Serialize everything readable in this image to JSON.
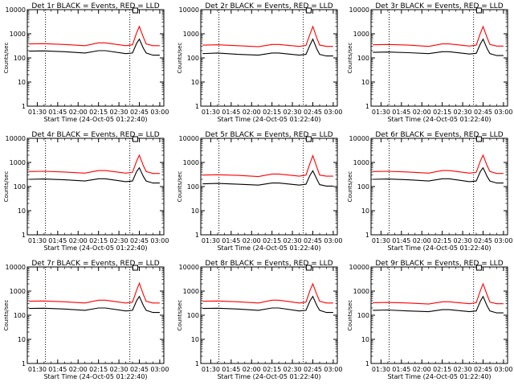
{
  "colors": {
    "events": "#000000",
    "lld": "#ff0000",
    "axes": "#000000",
    "background": "#ffffff"
  },
  "chart_data": [
    {
      "type": "line",
      "title": "Det 1r BLACK = Events, RED = LLD",
      "xlabel": "Start Time (24-Oct-05 01:22:40)",
      "ylabel": "Counts/sec",
      "y_scale": "log",
      "ylim": [
        1,
        10000
      ],
      "y_ticks": [
        "1",
        "10",
        "100",
        "1000",
        "10000"
      ],
      "x_ticks": [
        "01:30",
        "01:45",
        "02:00",
        "02:15",
        "02:30",
        "02:45",
        "03:00"
      ],
      "x_range": [
        "01:22:40",
        "03:03:00"
      ],
      "vlines": [
        "01:36",
        "02:38"
      ],
      "marker_x": "02:42",
      "series": [
        {
          "role": "events",
          "x": [
            "01:24",
            "01:35",
            "01:50",
            "02:05",
            "02:15",
            "02:20",
            "02:35",
            "02:40",
            "02:43",
            "02:45",
            "02:48",
            "02:50",
            "02:55",
            "03:00"
          ],
          "y": [
            190,
            195,
            180,
            160,
            200,
            200,
            150,
            160,
            400,
            600,
            250,
            160,
            130,
            130
          ]
        },
        {
          "role": "lld",
          "x": [
            "01:24",
            "01:35",
            "01:50",
            "02:05",
            "02:15",
            "02:20",
            "02:35",
            "02:40",
            "02:43",
            "02:45",
            "02:48",
            "02:50",
            "02:55",
            "03:00"
          ],
          "y": [
            380,
            390,
            360,
            320,
            420,
            420,
            320,
            350,
            1100,
            2000,
            700,
            380,
            320,
            320
          ]
        }
      ]
    },
    {
      "type": "line",
      "title": "Det 2r BLACK = Events, RED = LLD",
      "xlabel": "Start Time (24-Oct-05 01:22:40)",
      "ylabel": "Counts/sec",
      "y_scale": "log",
      "ylim": [
        1,
        10000
      ],
      "y_ticks": [
        "1",
        "10",
        "100",
        "1000",
        "10000"
      ],
      "x_ticks": [
        "01:30",
        "01:45",
        "02:00",
        "02:15",
        "02:30",
        "02:45",
        "03:00"
      ],
      "x_range": [
        "01:22:40",
        "03:03:00"
      ],
      "vlines": [
        "01:36",
        "02:38"
      ],
      "marker_x": "02:42",
      "series": [
        {
          "role": "events",
          "x": [
            "01:24",
            "01:35",
            "01:50",
            "02:05",
            "02:15",
            "02:20",
            "02:35",
            "02:40",
            "02:43",
            "02:45",
            "02:48",
            "02:50",
            "02:55",
            "03:00"
          ],
          "y": [
            150,
            160,
            140,
            130,
            160,
            160,
            130,
            140,
            350,
            600,
            230,
            140,
            120,
            120
          ]
        },
        {
          "role": "lld",
          "x": [
            "01:24",
            "01:35",
            "01:50",
            "02:05",
            "02:15",
            "02:20",
            "02:35",
            "02:40",
            "02:43",
            "02:45",
            "02:48",
            "02:50",
            "02:55",
            "03:00"
          ],
          "y": [
            340,
            350,
            320,
            290,
            360,
            360,
            300,
            330,
            1000,
            2000,
            650,
            340,
            300,
            300
          ]
        }
      ]
    },
    {
      "type": "line",
      "title": "Det 3r BLACK = Events, RED = LLD",
      "xlabel": "Start Time (24-Oct-05 01:22:40)",
      "ylabel": "Counts/sec",
      "y_scale": "log",
      "ylim": [
        1,
        10000
      ],
      "y_ticks": [
        "1",
        "10",
        "100",
        "1000",
        "10000"
      ],
      "x_ticks": [
        "01:30",
        "01:45",
        "02:00",
        "02:15",
        "02:30",
        "02:45",
        "03:00"
      ],
      "x_range": [
        "01:22:40",
        "03:03:00"
      ],
      "vlines": [
        "01:36",
        "02:38"
      ],
      "marker_x": "02:42",
      "series": [
        {
          "role": "events",
          "x": [
            "01:24",
            "01:35",
            "01:50",
            "02:05",
            "02:15",
            "02:20",
            "02:35",
            "02:40",
            "02:43",
            "02:45",
            "02:48",
            "02:50",
            "02:55",
            "03:00"
          ],
          "y": [
            170,
            175,
            165,
            150,
            180,
            180,
            145,
            155,
            380,
            600,
            240,
            150,
            125,
            125
          ]
        },
        {
          "role": "lld",
          "x": [
            "01:24",
            "01:35",
            "01:50",
            "02:05",
            "02:15",
            "02:20",
            "02:35",
            "02:40",
            "02:43",
            "02:45",
            "02:48",
            "02:50",
            "02:55",
            "03:00"
          ],
          "y": [
            350,
            360,
            340,
            300,
            380,
            380,
            310,
            340,
            1050,
            2000,
            680,
            360,
            310,
            310
          ]
        }
      ]
    },
    {
      "type": "line",
      "title": "Det 4r BLACK = Events, RED = LLD",
      "xlabel": "Start Time (24-Oct-05 01:22:40)",
      "ylabel": "Counts/sec",
      "y_scale": "log",
      "ylim": [
        1,
        10000
      ],
      "y_ticks": [
        "1",
        "10",
        "100",
        "1000",
        "10000"
      ],
      "x_ticks": [
        "01:30",
        "01:45",
        "02:00",
        "02:15",
        "02:30",
        "02:45",
        "03:00"
      ],
      "x_range": [
        "01:22:40",
        "03:03:00"
      ],
      "vlines": [
        "01:36",
        "02:38"
      ],
      "marker_x": "02:42",
      "series": [
        {
          "role": "events",
          "x": [
            "01:24",
            "01:35",
            "01:50",
            "02:05",
            "02:15",
            "02:20",
            "02:35",
            "02:40",
            "02:43",
            "02:45",
            "02:48",
            "02:50",
            "02:55",
            "03:00"
          ],
          "y": [
            200,
            205,
            190,
            170,
            210,
            210,
            160,
            170,
            420,
            600,
            260,
            170,
            140,
            140
          ]
        },
        {
          "role": "lld",
          "x": [
            "01:24",
            "01:35",
            "01:50",
            "02:05",
            "02:15",
            "02:20",
            "02:35",
            "02:40",
            "02:43",
            "02:45",
            "02:48",
            "02:50",
            "02:55",
            "03:00"
          ],
          "y": [
            420,
            430,
            400,
            360,
            460,
            460,
            360,
            390,
            1150,
            2000,
            720,
            420,
            350,
            350
          ]
        }
      ]
    },
    {
      "type": "line",
      "title": "Det 5r BLACK = Events, RED = LLD",
      "xlabel": "Start Time (24-Oct-05 01:22:40)",
      "ylabel": "Counts/sec",
      "y_scale": "log",
      "ylim": [
        1,
        10000
      ],
      "y_ticks": [
        "1",
        "10",
        "100",
        "1000",
        "10000"
      ],
      "x_ticks": [
        "01:30",
        "01:45",
        "02:00",
        "02:15",
        "02:30",
        "02:45",
        "03:00"
      ],
      "x_range": [
        "01:22:40",
        "03:03:00"
      ],
      "vlines": [
        "01:36",
        "02:38"
      ],
      "marker_x": "02:42",
      "series": [
        {
          "role": "events",
          "x": [
            "01:24",
            "01:35",
            "01:50",
            "02:05",
            "02:15",
            "02:20",
            "02:35",
            "02:40",
            "02:43",
            "02:45",
            "02:48",
            "02:50",
            "02:55",
            "03:00"
          ],
          "y": [
            130,
            135,
            125,
            115,
            140,
            140,
            115,
            125,
            300,
            450,
            200,
            120,
            105,
            105
          ]
        },
        {
          "role": "lld",
          "x": [
            "01:24",
            "01:35",
            "01:50",
            "02:05",
            "02:15",
            "02:20",
            "02:35",
            "02:40",
            "02:43",
            "02:45",
            "02:48",
            "02:50",
            "02:55",
            "03:00"
          ],
          "y": [
            300,
            310,
            290,
            260,
            330,
            330,
            270,
            300,
            950,
            1900,
            620,
            300,
            270,
            270
          ]
        }
      ]
    },
    {
      "type": "line",
      "title": "Det 6r BLACK = Events, RED = LLD",
      "xlabel": "Start Time (24-Oct-05 01:22:40)",
      "ylabel": "Counts/sec",
      "y_scale": "log",
      "ylim": [
        1,
        10000
      ],
      "y_ticks": [
        "1",
        "10",
        "100",
        "1000",
        "10000"
      ],
      "x_ticks": [
        "01:30",
        "01:45",
        "02:00",
        "02:15",
        "02:30",
        "02:45",
        "03:00"
      ],
      "x_range": [
        "01:22:40",
        "03:03:00"
      ],
      "vlines": [
        "01:36",
        "02:38"
      ],
      "marker_x": "02:42",
      "series": [
        {
          "role": "events",
          "x": [
            "01:24",
            "01:35",
            "01:50",
            "02:05",
            "02:15",
            "02:20",
            "02:35",
            "02:40",
            "02:43",
            "02:45",
            "02:48",
            "02:50",
            "02:55",
            "03:00"
          ],
          "y": [
            200,
            205,
            190,
            170,
            210,
            210,
            160,
            170,
            420,
            600,
            260,
            170,
            140,
            140
          ]
        },
        {
          "role": "lld",
          "x": [
            "01:24",
            "01:35",
            "01:50",
            "02:05",
            "02:15",
            "02:20",
            "02:35",
            "02:40",
            "02:43",
            "02:45",
            "02:48",
            "02:50",
            "02:55",
            "03:00"
          ],
          "y": [
            420,
            430,
            400,
            360,
            460,
            460,
            360,
            390,
            1150,
            2000,
            720,
            420,
            350,
            350
          ]
        }
      ]
    },
    {
      "type": "line",
      "title": "Det 7r BLACK = Events, RED = LLD",
      "xlabel": "Start Time (24-Oct-05 01:22:40)",
      "ylabel": "Counts/sec",
      "y_scale": "log",
      "ylim": [
        1,
        10000
      ],
      "y_ticks": [
        "1",
        "10",
        "100",
        "1000",
        "10000"
      ],
      "x_ticks": [
        "01:30",
        "01:45",
        "02:00",
        "02:15",
        "02:30",
        "02:45",
        "03:00"
      ],
      "x_range": [
        "01:22:40",
        "03:03:00"
      ],
      "vlines": [
        "01:36",
        "02:38"
      ],
      "marker_x": "02:42",
      "series": [
        {
          "role": "events",
          "x": [
            "01:24",
            "01:35",
            "01:50",
            "02:05",
            "02:15",
            "02:20",
            "02:35",
            "02:40",
            "02:43",
            "02:45",
            "02:48",
            "02:50",
            "02:55",
            "03:00"
          ],
          "y": [
            190,
            195,
            180,
            160,
            200,
            200,
            150,
            160,
            400,
            600,
            250,
            160,
            130,
            130
          ]
        },
        {
          "role": "lld",
          "x": [
            "01:24",
            "01:35",
            "01:50",
            "02:05",
            "02:15",
            "02:20",
            "02:35",
            "02:40",
            "02:43",
            "02:45",
            "02:48",
            "02:50",
            "02:55",
            "03:00"
          ],
          "y": [
            380,
            390,
            360,
            320,
            420,
            420,
            320,
            350,
            1100,
            2100,
            700,
            380,
            320,
            320
          ]
        }
      ]
    },
    {
      "type": "line",
      "title": "Det 8r BLACK = Events, RED = LLD",
      "xlabel": "Start Time (24-Oct-05 01:22:40)",
      "ylabel": "Counts/sec",
      "y_scale": "log",
      "ylim": [
        1,
        10000
      ],
      "y_ticks": [
        "1",
        "10",
        "100",
        "1000",
        "10000"
      ],
      "x_ticks": [
        "01:30",
        "01:45",
        "02:00",
        "02:15",
        "02:30",
        "02:45",
        "03:00"
      ],
      "x_range": [
        "01:22:40",
        "03:03:00"
      ],
      "vlines": [
        "01:36",
        "02:38"
      ],
      "marker_x": "02:42",
      "series": [
        {
          "role": "events",
          "x": [
            "01:24",
            "01:35",
            "01:50",
            "02:05",
            "02:15",
            "02:20",
            "02:35",
            "02:40",
            "02:43",
            "02:45",
            "02:48",
            "02:50",
            "02:55",
            "03:00"
          ],
          "y": [
            190,
            195,
            180,
            160,
            200,
            200,
            150,
            160,
            400,
            600,
            250,
            160,
            130,
            130
          ]
        },
        {
          "role": "lld",
          "x": [
            "01:24",
            "01:35",
            "01:50",
            "02:05",
            "02:15",
            "02:20",
            "02:35",
            "02:40",
            "02:43",
            "02:45",
            "02:48",
            "02:50",
            "02:55",
            "03:00"
          ],
          "y": [
            380,
            390,
            360,
            320,
            420,
            420,
            320,
            350,
            1100,
            2000,
            700,
            380,
            320,
            320
          ]
        }
      ]
    },
    {
      "type": "line",
      "title": "Det 9r BLACK = Events, RED = LLD",
      "xlabel": "Start Time (24-Oct-05 01:22:40)",
      "ylabel": "Counts/sec",
      "y_scale": "log",
      "ylim": [
        1,
        10000
      ],
      "y_ticks": [
        "1",
        "10",
        "100",
        "1000",
        "10000"
      ],
      "x_ticks": [
        "01:30",
        "01:45",
        "02:00",
        "02:15",
        "02:30",
        "02:45",
        "03:00"
      ],
      "x_range": [
        "01:22:40",
        "03:03:00"
      ],
      "vlines": [
        "01:36",
        "02:38"
      ],
      "marker_x": "02:42",
      "series": [
        {
          "role": "events",
          "x": [
            "01:24",
            "01:35",
            "01:50",
            "02:05",
            "02:15",
            "02:20",
            "02:35",
            "02:40",
            "02:43",
            "02:45",
            "02:48",
            "02:50",
            "02:55",
            "03:00"
          ],
          "y": [
            160,
            165,
            150,
            140,
            170,
            170,
            140,
            150,
            380,
            600,
            240,
            150,
            125,
            125
          ]
        },
        {
          "role": "lld",
          "x": [
            "01:24",
            "01:35",
            "01:50",
            "02:05",
            "02:15",
            "02:20",
            "02:35",
            "02:40",
            "02:43",
            "02:45",
            "02:48",
            "02:50",
            "02:55",
            "03:00"
          ],
          "y": [
            330,
            340,
            320,
            290,
            360,
            360,
            300,
            330,
            1050,
            2000,
            680,
            350,
            300,
            300
          ]
        }
      ]
    }
  ]
}
